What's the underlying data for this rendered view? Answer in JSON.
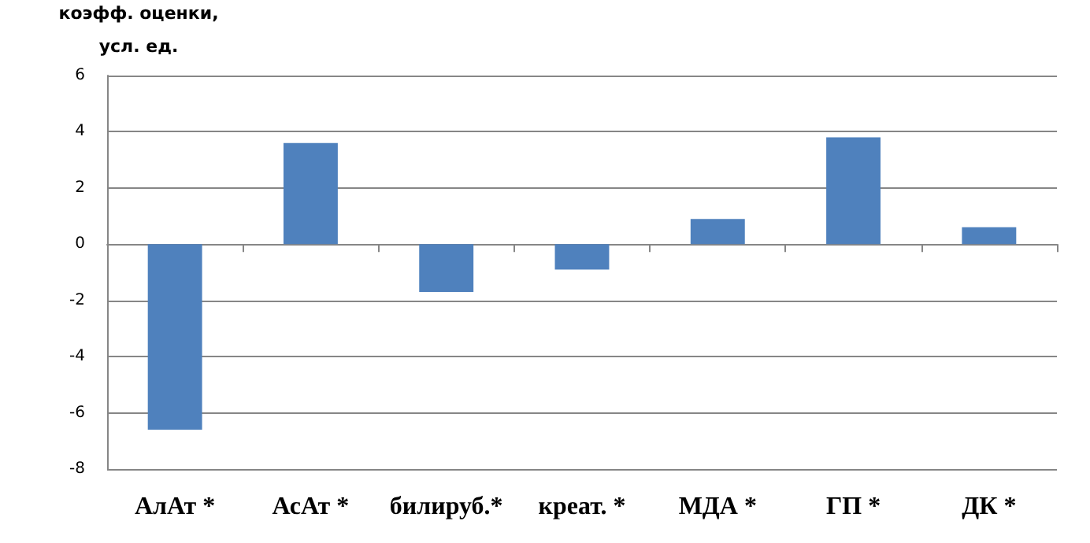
{
  "chart_data": {
    "type": "bar",
    "ylabel": "коэфф. оценки,\nусл. ед.",
    "categories": [
      "АлАт *",
      "АсАт *",
      "билируб.*",
      "креат. *",
      "МДА *",
      "ГП *",
      "ДК *"
    ],
    "values": [
      -6.6,
      3.6,
      -1.7,
      -0.9,
      0.9,
      3.8,
      0.6
    ],
    "color": "#4f81bd",
    "ylim": [
      -8,
      6
    ],
    "yticks": [
      -8,
      -6,
      -4,
      -2,
      0,
      2,
      4,
      6
    ],
    "grid": "y"
  }
}
